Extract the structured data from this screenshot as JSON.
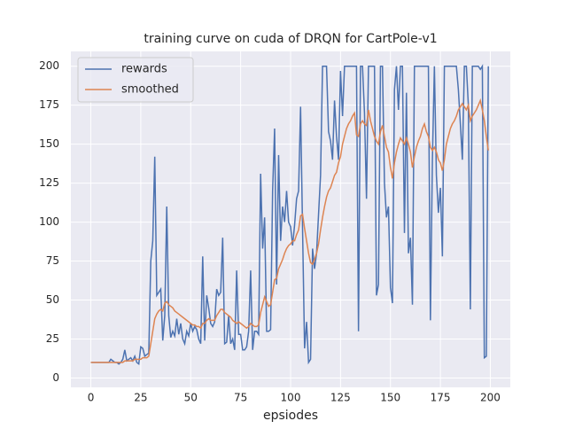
{
  "chart_data": {
    "type": "line",
    "title": "training curve on cuda of DRQN for CartPole-v1",
    "x_label": "epsiodes",
    "x": [
      0,
      1,
      2,
      3,
      4,
      5,
      6,
      7,
      8,
      9,
      10,
      11,
      12,
      13,
      14,
      15,
      16,
      17,
      18,
      19,
      20,
      21,
      22,
      23,
      24,
      25,
      26,
      27,
      28,
      29,
      30,
      31,
      32,
      33,
      34,
      35,
      36,
      37,
      38,
      39,
      40,
      41,
      42,
      43,
      44,
      45,
      46,
      47,
      48,
      49,
      50,
      51,
      52,
      53,
      54,
      55,
      56,
      57,
      58,
      59,
      60,
      61,
      62,
      63,
      64,
      65,
      66,
      67,
      68,
      69,
      70,
      71,
      72,
      73,
      74,
      75,
      76,
      77,
      78,
      79,
      80,
      81,
      82,
      83,
      84,
      85,
      86,
      87,
      88,
      89,
      90,
      91,
      92,
      93,
      94,
      95,
      96,
      97,
      98,
      99,
      100,
      101,
      102,
      103,
      104,
      105,
      106,
      107,
      108,
      109,
      110,
      111,
      112,
      113,
      114,
      115,
      116,
      117,
      118,
      119,
      120,
      121,
      122,
      123,
      124,
      125,
      126,
      127,
      128,
      129,
      130,
      131,
      132,
      133,
      134,
      135,
      136,
      137,
      138,
      139,
      140,
      141,
      142,
      143,
      144,
      145,
      146,
      147,
      148,
      149,
      150,
      151,
      152,
      153,
      154,
      155,
      156,
      157,
      158,
      159,
      160,
      161,
      162,
      163,
      164,
      165,
      166,
      167,
      168,
      169,
      170,
      171,
      172,
      173,
      174,
      175,
      176,
      177,
      178,
      179,
      180,
      181,
      182,
      183,
      184,
      185,
      186,
      187,
      188,
      189,
      190,
      191,
      192,
      193,
      194,
      195,
      196,
      197,
      198,
      199
    ],
    "series": [
      {
        "name": "rewards",
        "color": "#4c72b0",
        "values": [
          10,
          10,
          10,
          10,
          10,
          10,
          10,
          10,
          10,
          10,
          12,
          11,
          10,
          10,
          9,
          10,
          12,
          18,
          11,
          12,
          13,
          11,
          14,
          10,
          9,
          20,
          19,
          14,
          15,
          16,
          75,
          88,
          142,
          53,
          55,
          57,
          24,
          40,
          110,
          40,
          26,
          30,
          27,
          38,
          28,
          35,
          25,
          22,
          30,
          27,
          35,
          30,
          33,
          31,
          25,
          22,
          78,
          24,
          53,
          45,
          35,
          33,
          36,
          57,
          53,
          55,
          90,
          22,
          23,
          40,
          22,
          25,
          18,
          69,
          28,
          28,
          18,
          18,
          20,
          30,
          69,
          18,
          30,
          30,
          28,
          131,
          83,
          103,
          30,
          30,
          31,
          120,
          160,
          60,
          143,
          88,
          110,
          100,
          120,
          100,
          97,
          85,
          98,
          115,
          120,
          174,
          95,
          19,
          36,
          10,
          12,
          83,
          70,
          80,
          105,
          130,
          200,
          200,
          200,
          158,
          152,
          140,
          178,
          155,
          140,
          197,
          168,
          200,
          200,
          200,
          200,
          200,
          200,
          200,
          30,
          200,
          200,
          170,
          115,
          200,
          200,
          200,
          200,
          53,
          60,
          200,
          200,
          125,
          103,
          110,
          58,
          48,
          185,
          200,
          172,
          200,
          200,
          93,
          183,
          80,
          90,
          47,
          200,
          200,
          200,
          200,
          200,
          200,
          200,
          200,
          37,
          140,
          200,
          130,
          106,
          122,
          78,
          200,
          200,
          200,
          200,
          200,
          200,
          200,
          185,
          163,
          140,
          200,
          200,
          175,
          44,
          200,
          200,
          200,
          200,
          198,
          200,
          13,
          14,
          200
        ]
      },
      {
        "name": "smoothed",
        "color": "#dd8452",
        "values": [
          10,
          10,
          10,
          10,
          10,
          10,
          10,
          10,
          10,
          10,
          10,
          10,
          10,
          10,
          10,
          10,
          10,
          11,
          11,
          11,
          11,
          11,
          12,
          12,
          12,
          12,
          13,
          13,
          13,
          14,
          22,
          30,
          38,
          41,
          43,
          44,
          43,
          48,
          49,
          47,
          46,
          45,
          43,
          42,
          41,
          40,
          39,
          38,
          37,
          36,
          35,
          34,
          34,
          33,
          33,
          32,
          35,
          35,
          37,
          38,
          37,
          37,
          37,
          40,
          42,
          44,
          44,
          42,
          41,
          40,
          39,
          37,
          36,
          35,
          36,
          35,
          34,
          33,
          32,
          33,
          35,
          34,
          33,
          33,
          34,
          42,
          47,
          52,
          49,
          46,
          47,
          55,
          63,
          64,
          70,
          73,
          76,
          80,
          83,
          85,
          86,
          88,
          88,
          92,
          95,
          104,
          105,
          96,
          88,
          80,
          74,
          73,
          76,
          80,
          86,
          95,
          103,
          110,
          116,
          120,
          122,
          126,
          130,
          132,
          138,
          142,
          150,
          155,
          160,
          163,
          165,
          168,
          170,
          156,
          155,
          163,
          165,
          163,
          162,
          172,
          165,
          160,
          155,
          152,
          150,
          158,
          162,
          155,
          148,
          145,
          135,
          128,
          138,
          145,
          150,
          154,
          152,
          150,
          154,
          150,
          145,
          135,
          142,
          148,
          152,
          155,
          160,
          163,
          158,
          155,
          148,
          146,
          148,
          145,
          140,
          138,
          133,
          140,
          150,
          155,
          160,
          163,
          165,
          168,
          172,
          174,
          176,
          174,
          172,
          175,
          165,
          168,
          170,
          172,
          175,
          178,
          172,
          165,
          155,
          146
        ]
      }
    ],
    "xlim": [
      -10,
      210
    ],
    "xticks": [
      0,
      25,
      50,
      75,
      100,
      125,
      150,
      175,
      200
    ],
    "ylim": [
      -6,
      209.5
    ],
    "yticks": [
      0,
      25,
      50,
      75,
      100,
      125,
      150,
      175,
      200
    ],
    "grid": true,
    "legend": "upper-left"
  }
}
